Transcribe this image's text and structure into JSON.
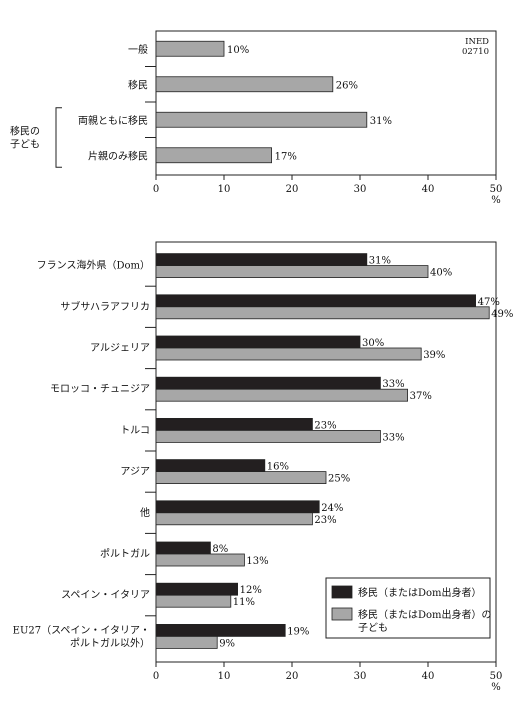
{
  "source_code": [
    "INED",
    "02710"
  ],
  "colors": {
    "immigrant": "#231f20",
    "child": "#a7a7a7",
    "bar_stroke": "#222222"
  },
  "chart_data": [
    {
      "type": "bar",
      "orientation": "horizontal",
      "categories": [
        "一般",
        "移民",
        "両親ともに移民",
        "片親のみ移民"
      ],
      "values": [
        10,
        26,
        31,
        17
      ],
      "group_label": [
        "移民の",
        "子ども"
      ],
      "group_members": [
        "両親ともに移民",
        "片親のみ移民"
      ],
      "xlim": [
        0,
        50
      ],
      "xticks": [
        0,
        10,
        20,
        30,
        40,
        50
      ],
      "xunit": "%",
      "value_suffix": "%"
    },
    {
      "type": "bar",
      "orientation": "horizontal",
      "categories": [
        [
          "フランス海外県（Dom）"
        ],
        [
          "サブサハラアフリカ"
        ],
        [
          "アルジェリア"
        ],
        [
          "モロッコ・チュニジア"
        ],
        [
          "トルコ"
        ],
        [
          "アジア"
        ],
        [
          "他"
        ],
        [
          "ポルトガル"
        ],
        [
          "スペイン・イタリア"
        ],
        [
          "EU27（スペイン・イタリア・",
          "ポルトガル以外）"
        ]
      ],
      "series": [
        {
          "name": "移民（またはDom出身者）",
          "values": [
            31,
            47,
            30,
            33,
            23,
            16,
            24,
            8,
            12,
            19
          ]
        },
        {
          "name": "移民（またはDom出身者）の子ども",
          "values": [
            40,
            49,
            39,
            37,
            33,
            25,
            23,
            13,
            11,
            9
          ]
        }
      ],
      "legend": {
        "position": "bottom-right",
        "entries": [
          [
            "移民（またはDom出身者）"
          ],
          [
            "移民（またはDom出身者）の",
            "子ども"
          ]
        ]
      },
      "xlim": [
        0,
        50
      ],
      "xticks": [
        0,
        10,
        20,
        30,
        40,
        50
      ],
      "xunit": "%",
      "value_suffix": "%"
    }
  ]
}
